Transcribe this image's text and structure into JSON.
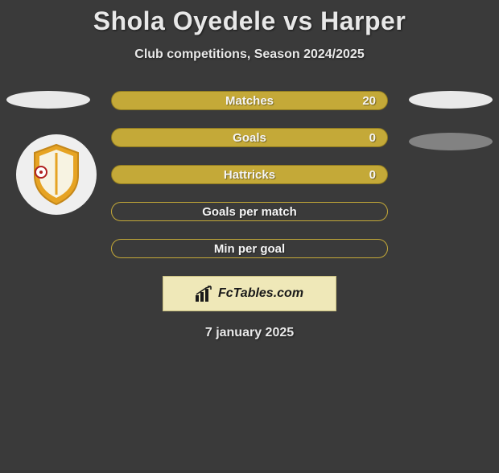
{
  "title": "Shola Oyedele vs Harper",
  "subtitle": "Club competitions, Season 2024/2025",
  "date": "7 january 2025",
  "brand": "FcTables.com",
  "colors": {
    "background": "#3a3a3a",
    "text": "#e8e8e8",
    "ellipse_light": "#e9e9e9",
    "ellipse_grey": "#828282",
    "bar_fill": "#c4a938",
    "bar_border": "#8f7a20",
    "bar_hollow_border": "#c4a938",
    "brand_box_bg": "#efe8b8",
    "brand_box_border": "#c9c080"
  },
  "bars": [
    {
      "label": "Matches",
      "value": "20",
      "filled": true
    },
    {
      "label": "Goals",
      "value": "0",
      "filled": true
    },
    {
      "label": "Hattricks",
      "value": "0",
      "filled": true
    },
    {
      "label": "Goals per match",
      "value": "",
      "filled": false
    },
    {
      "label": "Min per goal",
      "value": "",
      "filled": false
    }
  ]
}
